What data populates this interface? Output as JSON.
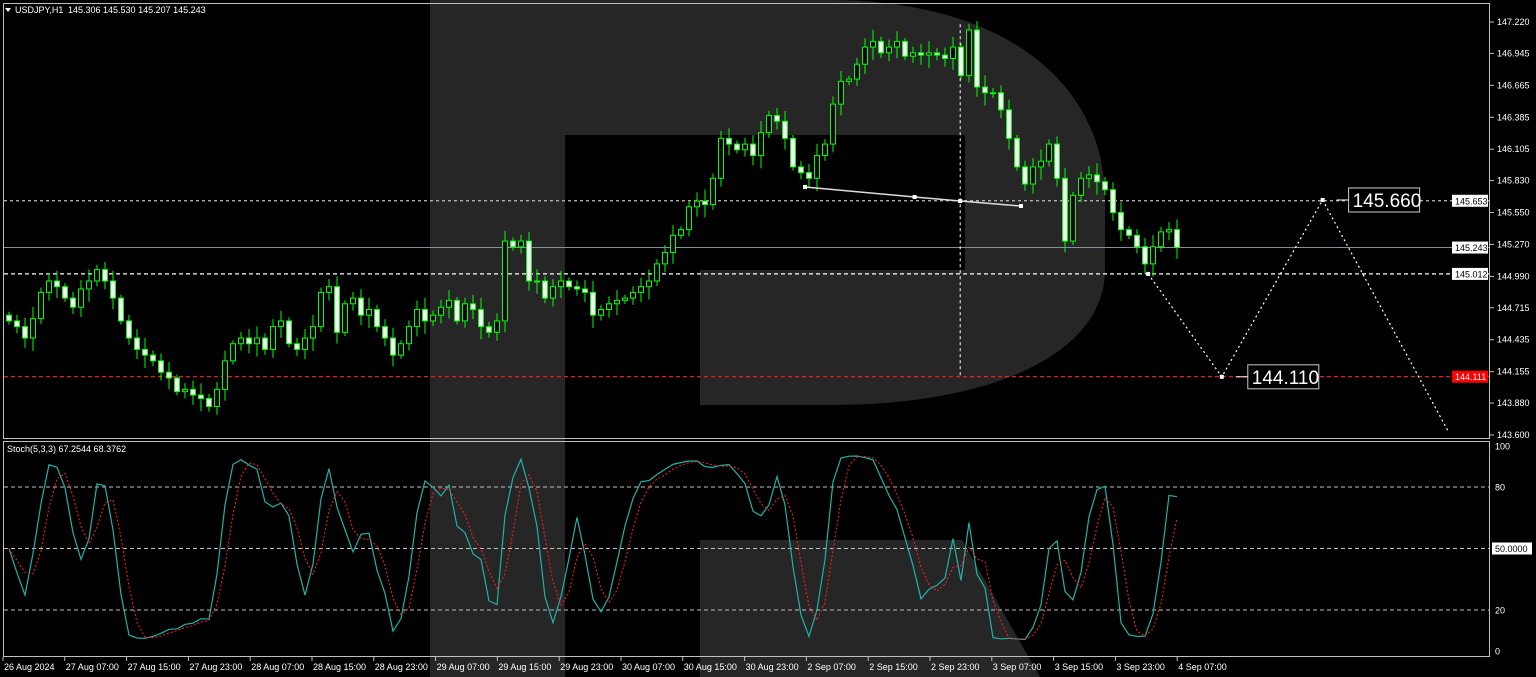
{
  "header": {
    "symbol": "USDJPY,H1",
    "ohlc": "145.306 145.530 145.207 145.243"
  },
  "stoch_header": "Stoch(5,3,3) 67.2544 68.3762",
  "colors": {
    "background": "#000000",
    "candle_wick": "#00ff00",
    "bear_body": "#ffffff",
    "bull_body": "#000000",
    "stoch_main": "#20b2aa",
    "stoch_signal": "#ff2020",
    "watermark": "#262626",
    "support_line": "#ff2020"
  },
  "chart_data": {
    "type": "candlestick",
    "title": "USDJPY,H1",
    "ylim": [
      143.6,
      147.22
    ],
    "price_ticks": [
      "147.220",
      "146.945",
      "146.665",
      "146.385",
      "146.105",
      "145.830",
      "145.550",
      "145.270",
      "144.990",
      "144.715",
      "144.435",
      "144.155",
      "143.880",
      "143.600"
    ],
    "closes": [
      144.6,
      144.55,
      144.45,
      144.62,
      144.85,
      144.95,
      144.9,
      144.8,
      144.72,
      144.88,
      144.95,
      145.05,
      144.95,
      144.8,
      144.6,
      144.45,
      144.35,
      144.3,
      144.25,
      144.15,
      144.1,
      143.98,
      144.0,
      143.95,
      143.92,
      143.85,
      144.0,
      144.25,
      144.4,
      144.45,
      144.4,
      144.45,
      144.35,
      144.55,
      144.6,
      144.4,
      144.35,
      144.45,
      144.55,
      144.85,
      144.9,
      144.5,
      144.75,
      144.8,
      144.65,
      144.7,
      144.55,
      144.45,
      144.3,
      144.4,
      144.55,
      144.7,
      144.6,
      144.65,
      144.72,
      144.78,
      144.6,
      144.75,
      144.7,
      144.55,
      144.5,
      144.6,
      145.3,
      145.25,
      145.3,
      144.95,
      144.95,
      144.8,
      144.9,
      144.95,
      144.9,
      144.88,
      144.85,
      144.65,
      144.7,
      144.75,
      144.78,
      144.8,
      144.85,
      144.9,
      144.95,
      145.1,
      145.2,
      145.35,
      145.4,
      145.6,
      145.65,
      145.62,
      145.85,
      146.2,
      146.15,
      146.1,
      146.15,
      146.05,
      146.25,
      146.4,
      146.35,
      146.2,
      145.95,
      145.9,
      145.85,
      146.05,
      146.15,
      146.5,
      146.7,
      146.72,
      146.85,
      147.0,
      147.05,
      146.95,
      147.0,
      147.05,
      146.92,
      146.95,
      146.93,
      146.95,
      146.93,
      146.9,
      147.0,
      146.75,
      147.15,
      146.65,
      146.6,
      146.6,
      146.45,
      146.2,
      145.95,
      145.8,
      145.95,
      146.0,
      146.15,
      145.85,
      145.3,
      145.7,
      145.85,
      145.88,
      145.82,
      145.75,
      145.55,
      145.4,
      145.35,
      145.25,
      145.1,
      145.25,
      145.38,
      145.4,
      145.243
    ],
    "hlines": [
      {
        "price": 145.653,
        "label": "145.653",
        "style": "dotted"
      },
      {
        "price": 145.243,
        "label": "145.243",
        "style": "solid"
      },
      {
        "price": 145.012,
        "label": "145.012",
        "style": "dashed"
      },
      {
        "price": 144.111,
        "label": "144.111",
        "style": "dashed-red"
      }
    ],
    "trendline": [
      {
        "bar": 99.5,
        "price": 145.774
      },
      {
        "bar": 113.2,
        "price": 145.686
      },
      {
        "bar": 118.9,
        "price": 145.651
      },
      {
        "bar": 126.5,
        "price": 145.607
      }
    ],
    "vline": {
      "bar": 118.9,
      "from": 147.2,
      "to": 144.11
    },
    "forecast": [
      {
        "bar": 142.4,
        "price": 145.012
      },
      {
        "bar": 151.6,
        "price": 144.11
      },
      {
        "bar": 164.2,
        "price": 145.66
      },
      {
        "bar": 180,
        "price": 143.62
      }
    ],
    "forecast_labels": [
      "145.660",
      "144.110"
    ],
    "stochastic": {
      "k": 5,
      "d": 3,
      "slowing": 3,
      "levels": [
        80,
        50,
        20
      ],
      "ticks": [
        "100",
        "80",
        "50.0000",
        "20",
        "0"
      ]
    },
    "time_labels": [
      "26 Aug 2024",
      "27 Aug 07:00",
      "27 Aug 15:00",
      "27 Aug 23:00",
      "28 Aug 07:00",
      "28 Aug 15:00",
      "28 Aug 23:00",
      "29 Aug 07:00",
      "29 Aug 15:00",
      "29 Aug 23:00",
      "30 Aug 07:00",
      "30 Aug 15:00",
      "30 Aug 23:00",
      "2 Sep 07:00",
      "2 Sep 15:00",
      "2 Sep 23:00",
      "3 Sep 07:00",
      "3 Sep 15:00",
      "3 Sep 23:00",
      "4 Sep 07:00"
    ]
  }
}
